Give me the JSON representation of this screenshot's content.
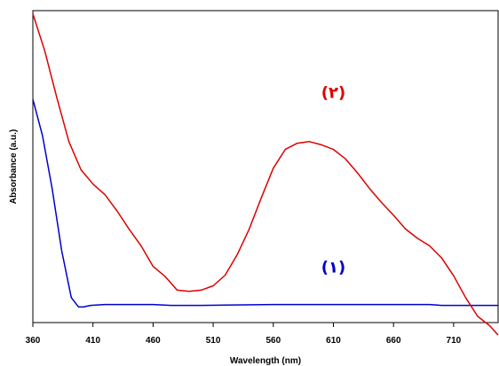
{
  "chart_data": {
    "type": "line",
    "title": "",
    "xlabel": "Wavelength (nm)",
    "ylabel": "Absorbance (a.u.)",
    "xlim": [
      360,
      747
    ],
    "ylim": [
      0,
      1
    ],
    "xticks": [
      "360",
      "410",
      "460",
      "510",
      "560",
      "610",
      "660",
      "710"
    ],
    "yticks_visible": false,
    "grid": false,
    "legend": "none",
    "series": [
      {
        "name": "(۱)",
        "color": "#0000cc",
        "x": [
          360,
          368,
          376,
          384,
          392,
          398,
          402,
          408,
          420,
          440,
          460,
          475,
          500,
          560,
          610,
          650,
          690,
          700,
          747
        ],
        "y": [
          0.716,
          0.6,
          0.43,
          0.23,
          0.08,
          0.05,
          0.05,
          0.055,
          0.058,
          0.058,
          0.058,
          0.055,
          0.055,
          0.058,
          0.058,
          0.058,
          0.058,
          0.055,
          0.055
        ]
      },
      {
        "name": "(۲)",
        "color": "#dd0000",
        "x": [
          360,
          370,
          380,
          390,
          400,
          410,
          420,
          430,
          440,
          450,
          460,
          470,
          480,
          490,
          500,
          510,
          520,
          530,
          540,
          550,
          560,
          570,
          580,
          590,
          600,
          610,
          620,
          630,
          640,
          650,
          660,
          670,
          680,
          690,
          700,
          710,
          720,
          730,
          740,
          747
        ],
        "y": [
          0.99,
          0.87,
          0.72,
          0.58,
          0.49,
          0.444,
          0.41,
          0.358,
          0.3,
          0.246,
          0.18,
          0.148,
          0.104,
          0.1,
          0.104,
          0.118,
          0.152,
          0.218,
          0.3,
          0.4,
          0.495,
          0.555,
          0.575,
          0.58,
          0.57,
          0.555,
          0.525,
          0.48,
          0.43,
          0.385,
          0.344,
          0.3,
          0.27,
          0.246,
          0.207,
          0.15,
          0.08,
          0.02,
          -0.01,
          -0.04
        ]
      }
    ],
    "annotations": [
      {
        "text": "(۲)",
        "color": "#dd0000",
        "x": 610,
        "y": 0.72
      },
      {
        "text": "(۱)",
        "color": "#0000cc",
        "x": 610,
        "y": 0.16
      }
    ]
  }
}
